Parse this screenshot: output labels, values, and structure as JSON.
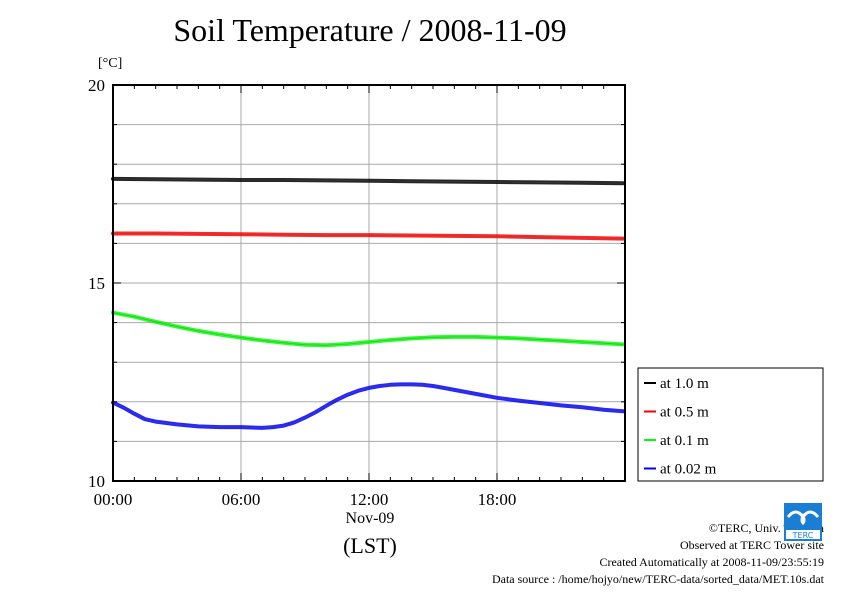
{
  "chart_data": {
    "type": "line",
    "title": "Soil Temperature / 2008-11-09",
    "ylabel": "[°C]",
    "xlabel": "(LST)",
    "date_label": "Nov-09",
    "xlim": [
      0,
      24
    ],
    "ylim": [
      10,
      20
    ],
    "x_ticks": [
      0,
      6,
      12,
      18
    ],
    "x_tick_labels": [
      "00:00",
      "06:00",
      "12:00",
      "18:00"
    ],
    "y_ticks": [
      10,
      15,
      20
    ],
    "y_tick_labels": [
      "10",
      "15",
      "20"
    ],
    "y_gridlines": [
      11,
      12,
      13,
      14,
      15,
      16,
      17,
      18,
      19
    ],
    "x_gridlines": [
      6,
      12,
      18
    ],
    "grid": true,
    "legend_position": "right-bottom-outside",
    "series": [
      {
        "name": "at 1.0 m",
        "color": "#000000",
        "x": [
          0,
          2,
          4,
          6,
          8,
          10,
          12,
          14,
          16,
          18,
          20,
          22,
          23.9
        ],
        "values": [
          17.63,
          17.62,
          17.61,
          17.6,
          17.6,
          17.59,
          17.58,
          17.57,
          17.56,
          17.55,
          17.54,
          17.53,
          17.52
        ]
      },
      {
        "name": "at 0.5 m",
        "color": "#ff0000",
        "x": [
          0,
          2,
          4,
          6,
          8,
          10,
          12,
          14,
          16,
          18,
          20,
          22,
          23.9
        ],
        "values": [
          16.25,
          16.25,
          16.24,
          16.23,
          16.22,
          16.21,
          16.21,
          16.2,
          16.19,
          16.18,
          16.16,
          16.14,
          16.12
        ]
      },
      {
        "name": "at 0.1 m",
        "color": "#00ff00",
        "x": [
          0,
          1,
          2,
          3,
          4,
          5,
          6,
          7,
          8,
          9,
          10,
          11,
          12,
          13,
          14,
          15,
          16,
          17,
          18,
          19,
          20,
          21,
          22,
          23,
          23.9
        ],
        "values": [
          14.25,
          14.15,
          14.02,
          13.9,
          13.79,
          13.7,
          13.62,
          13.55,
          13.49,
          13.44,
          13.43,
          13.46,
          13.51,
          13.56,
          13.6,
          13.63,
          13.64,
          13.64,
          13.62,
          13.6,
          13.57,
          13.54,
          13.51,
          13.48,
          13.45
        ]
      },
      {
        "name": "at 0.02 m",
        "color": "#0000ff",
        "x": [
          0,
          0.5,
          1,
          1.5,
          2,
          3,
          4,
          5,
          6,
          7,
          7.5,
          8,
          8.5,
          9,
          9.5,
          10,
          10.5,
          11,
          11.5,
          12,
          12.5,
          13,
          13.5,
          14,
          14.5,
          15,
          15.5,
          16,
          17,
          18,
          19,
          20,
          21,
          22,
          23,
          23.9
        ],
        "values": [
          11.98,
          11.85,
          11.7,
          11.56,
          11.5,
          11.43,
          11.38,
          11.36,
          11.36,
          11.34,
          11.36,
          11.4,
          11.48,
          11.6,
          11.74,
          11.9,
          12.05,
          12.18,
          12.28,
          12.35,
          12.4,
          12.43,
          12.44,
          12.44,
          12.43,
          12.4,
          12.35,
          12.3,
          12.2,
          12.1,
          12.03,
          11.97,
          11.91,
          11.86,
          11.8,
          11.76
        ]
      }
    ]
  },
  "credits": {
    "copyright": "©TERC, Univ. Tsukuba",
    "observed": "Observed at TERC Tower site",
    "created": "Created Automatically at 2008-11-09/23:55:19",
    "source": "Data source : /home/hojyo/new/TERC-data/sorted_data/MET.10s.dat"
  },
  "logo": {
    "icon": "terc-logo-icon",
    "text": "TERC",
    "color": "#1a7fd4"
  }
}
